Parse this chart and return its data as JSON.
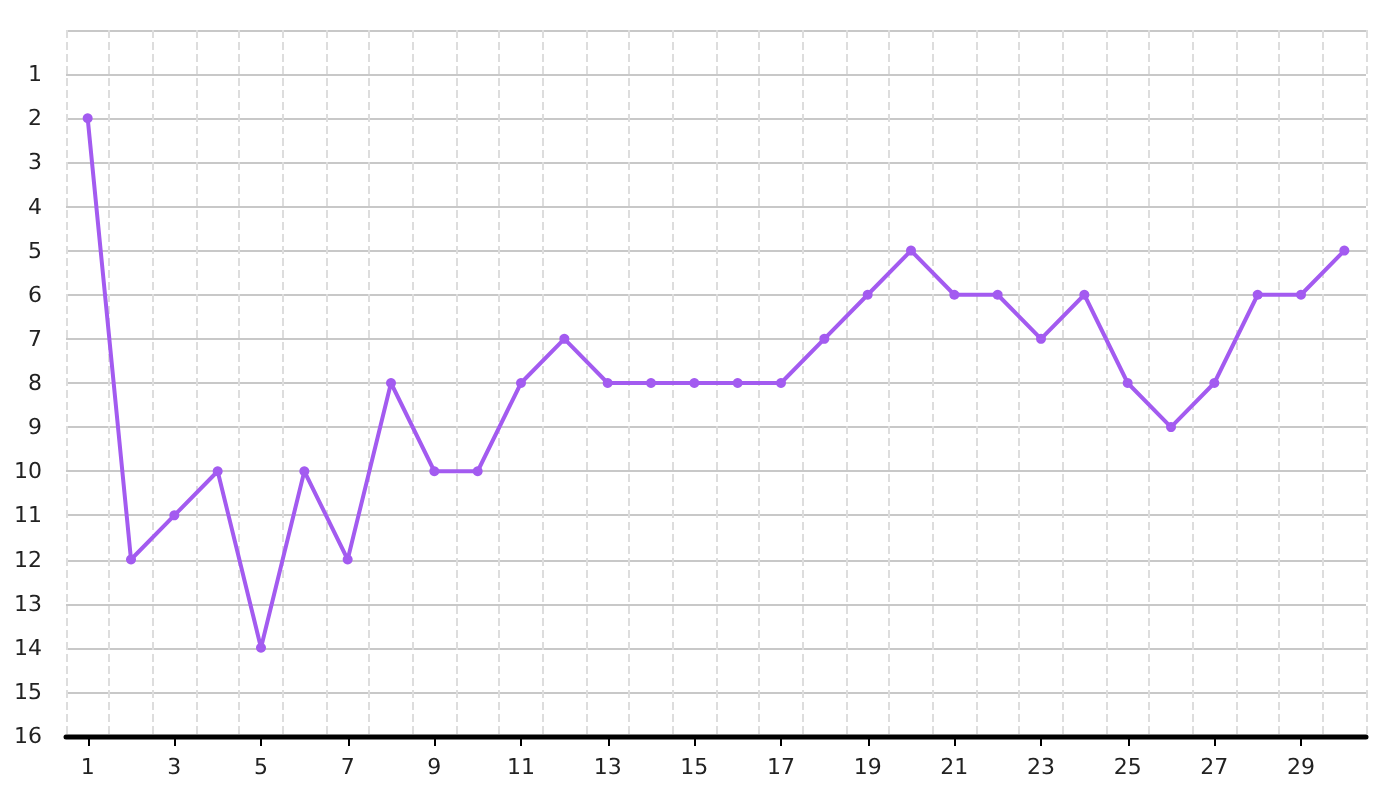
{
  "chart_data": {
    "type": "line",
    "categories": [
      "1",
      null,
      "3",
      null,
      "5",
      null,
      "7",
      null,
      "9",
      null,
      "11",
      null,
      "13",
      null,
      "15",
      null,
      "17",
      null,
      "19",
      null,
      "21",
      null,
      "23",
      null,
      "25",
      null,
      "27",
      null,
      "29",
      null
    ],
    "series": [
      {
        "color": "#a35bf0",
        "values": [
          2,
          12,
          11,
          10,
          14,
          10,
          12,
          8,
          10,
          10,
          8,
          7,
          8,
          8,
          8,
          8,
          8,
          7,
          6,
          5,
          6,
          6,
          7,
          6,
          8,
          9,
          8,
          6,
          6,
          5
        ]
      }
    ],
    "ylim": [
      16,
      0
    ],
    "yticks": [
      {
        "value": 0,
        "label": null
      },
      1,
      2,
      3,
      4,
      5,
      6,
      7,
      8,
      9,
      10,
      11,
      12,
      13,
      14,
      15,
      16
    ],
    "grid": true,
    "marker": "circle",
    "line_style": "solid"
  }
}
